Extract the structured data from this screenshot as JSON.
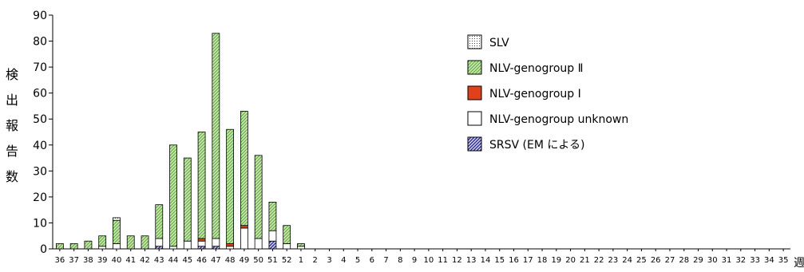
{
  "chart_data": {
    "type": "bar",
    "stacked": true,
    "ylabel": "検出報告数",
    "xlabel_unit": "週",
    "ylim": [
      0,
      90
    ],
    "yticks": [
      0,
      10,
      20,
      30,
      40,
      50,
      60,
      70,
      80,
      90
    ],
    "grid": false,
    "legend_position": "top-right",
    "categories": [
      "36",
      "37",
      "38",
      "39",
      "40",
      "41",
      "42",
      "43",
      "44",
      "45",
      "46",
      "47",
      "48",
      "49",
      "50",
      "51",
      "52",
      "1",
      "2",
      "3",
      "4",
      "5",
      "6",
      "7",
      "8",
      "9",
      "10",
      "11",
      "12",
      "13",
      "14",
      "15",
      "16",
      "17",
      "18",
      "19",
      "20",
      "21",
      "22",
      "23",
      "24",
      "25",
      "26",
      "27",
      "28",
      "29",
      "30",
      "31",
      "32",
      "33",
      "34",
      "35"
    ],
    "series": [
      {
        "name": "SRSV (EM による)",
        "key": "srsv",
        "color": "#3d3d9a",
        "values": [
          0,
          0,
          0,
          0,
          0,
          0,
          0,
          1,
          0,
          0,
          1,
          1,
          0,
          0,
          0,
          3,
          0,
          0,
          0,
          0,
          0,
          0,
          0,
          0,
          0,
          0,
          0,
          0,
          0,
          0,
          0,
          0,
          0,
          0,
          0,
          0,
          0,
          0,
          0,
          0,
          0,
          0,
          0,
          0,
          0,
          0,
          0,
          0,
          0,
          0,
          0,
          0
        ]
      },
      {
        "name": "NLV-genogroup unknown",
        "key": "unknown",
        "color": "#ffffff",
        "values": [
          0,
          0,
          0,
          1,
          2,
          0,
          0,
          3,
          1,
          3,
          2,
          3,
          1,
          8,
          4,
          4,
          2,
          1,
          0,
          0,
          0,
          0,
          0,
          0,
          0,
          0,
          0,
          0,
          0,
          0,
          0,
          0,
          0,
          0,
          0,
          0,
          0,
          0,
          0,
          0,
          0,
          0,
          0,
          0,
          0,
          0,
          0,
          0,
          0,
          0,
          0,
          0
        ]
      },
      {
        "name": "NLV-genogroup Ⅰ",
        "key": "g1",
        "color": "#e0401a",
        "values": [
          0,
          0,
          0,
          0,
          0,
          0,
          0,
          0,
          0,
          0,
          1,
          0,
          1,
          1,
          0,
          0,
          0,
          0,
          0,
          0,
          0,
          0,
          0,
          0,
          0,
          0,
          0,
          0,
          0,
          0,
          0,
          0,
          0,
          0,
          0,
          0,
          0,
          0,
          0,
          0,
          0,
          0,
          0,
          0,
          0,
          0,
          0,
          0,
          0,
          0,
          0,
          0
        ]
      },
      {
        "name": "NLV-genogroup Ⅱ",
        "key": "g2",
        "color": "#b8e09a",
        "values": [
          2,
          2,
          3,
          4,
          9,
          5,
          5,
          13,
          39,
          32,
          41,
          79,
          44,
          44,
          32,
          11,
          7,
          1,
          0,
          0,
          0,
          0,
          0,
          0,
          0,
          0,
          0,
          0,
          0,
          0,
          0,
          0,
          0,
          0,
          0,
          0,
          0,
          0,
          0,
          0,
          0,
          0,
          0,
          0,
          0,
          0,
          0,
          0,
          0,
          0,
          0,
          0
        ]
      },
      {
        "name": "SLV",
        "key": "slv",
        "color": "#ffffff",
        "values": [
          0,
          0,
          0,
          0,
          1,
          0,
          0,
          0,
          0,
          0,
          0,
          0,
          0,
          0,
          0,
          0,
          0,
          0,
          0,
          0,
          0,
          0,
          0,
          0,
          0,
          0,
          0,
          0,
          0,
          0,
          0,
          0,
          0,
          0,
          0,
          0,
          0,
          0,
          0,
          0,
          0,
          0,
          0,
          0,
          0,
          0,
          0,
          0,
          0,
          0,
          0,
          0
        ]
      }
    ],
    "legend_order": [
      "slv",
      "g2",
      "g1",
      "unknown",
      "srsv"
    ]
  }
}
